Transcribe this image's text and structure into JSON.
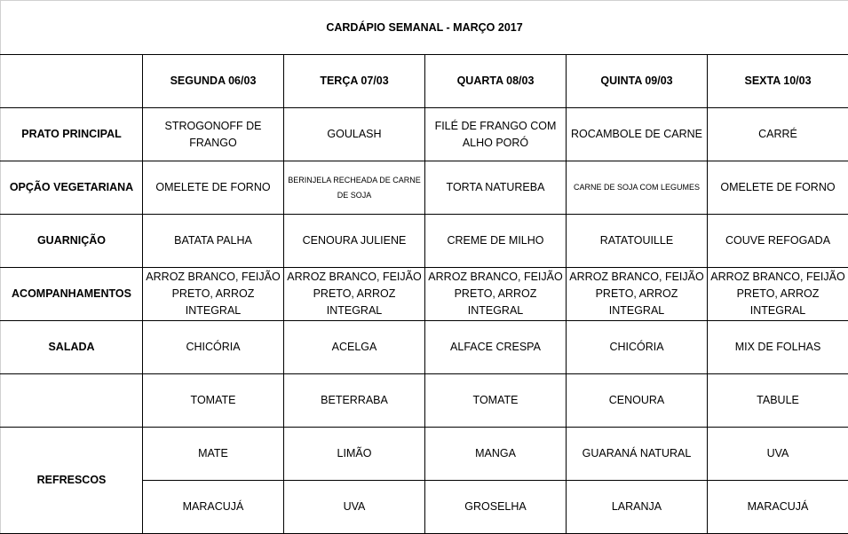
{
  "title": "CARDÁPIO SEMANAL - MARÇO 2017",
  "days": [
    "SEGUNDA  06/03",
    "TERÇA  07/03",
    "QUARTA 08/03",
    "QUINTA 09/03",
    "SEXTA 10/03"
  ],
  "rows": [
    {
      "label": "PRATO PRINCIPAL",
      "cells": [
        "STROGONOFF DE FRANGO",
        "GOULASH",
        "FILÉ DE FRANGO COM ALHO PORÓ",
        "ROCAMBOLE DE CARNE",
        "CARRÉ"
      ]
    },
    {
      "label": "OPÇÃO VEGETARIANA",
      "cells": [
        "OMELETE DE FORNO",
        "BERINJELA RECHEADA DE CARNE DE SOJA",
        "TORTA NATUREBA",
        "CARNE DE SOJA COM LEGUMES",
        "OMELETE DE FORNO"
      ]
    },
    {
      "label": "GUARNIÇÃO",
      "cells": [
        "BATATA PALHA",
        "CENOURA JULIENE",
        "CREME DE MILHO",
        "RATATOUILLE",
        "COUVE REFOGADA"
      ]
    },
    {
      "label": "ACOMPANHAMENTOS",
      "cells": [
        "ARROZ BRANCO, FEIJÃO PRETO, ARROZ INTEGRAL",
        "ARROZ BRANCO, FEIJÃO PRETO, ARROZ INTEGRAL",
        "ARROZ BRANCO, FEIJÃO PRETO, ARROZ INTEGRAL",
        "ARROZ BRANCO, FEIJÃO PRETO, ARROZ INTEGRAL",
        "ARROZ BRANCO, FEIJÃO PRETO, ARROZ INTEGRAL"
      ]
    },
    {
      "label": "SALADA",
      "cells": [
        "CHICÓRIA",
        "ACELGA",
        "ALFACE CRESPA",
        "CHICÓRIA",
        "MIX DE FOLHAS"
      ]
    },
    {
      "label": "",
      "cells": [
        "TOMATE",
        "BETERRABA",
        "TOMATE",
        "CENOURA",
        "TABULE"
      ]
    }
  ],
  "refrescos": {
    "label": "REFRESCOS",
    "rows": [
      [
        "MATE",
        "LIMÃO",
        "MANGA",
        "GUARANÁ NATURAL",
        "UVA"
      ],
      [
        "MARACUJÁ",
        "UVA",
        "GROSELHA",
        "LARANJA",
        "MARACUJÁ"
      ]
    ]
  }
}
